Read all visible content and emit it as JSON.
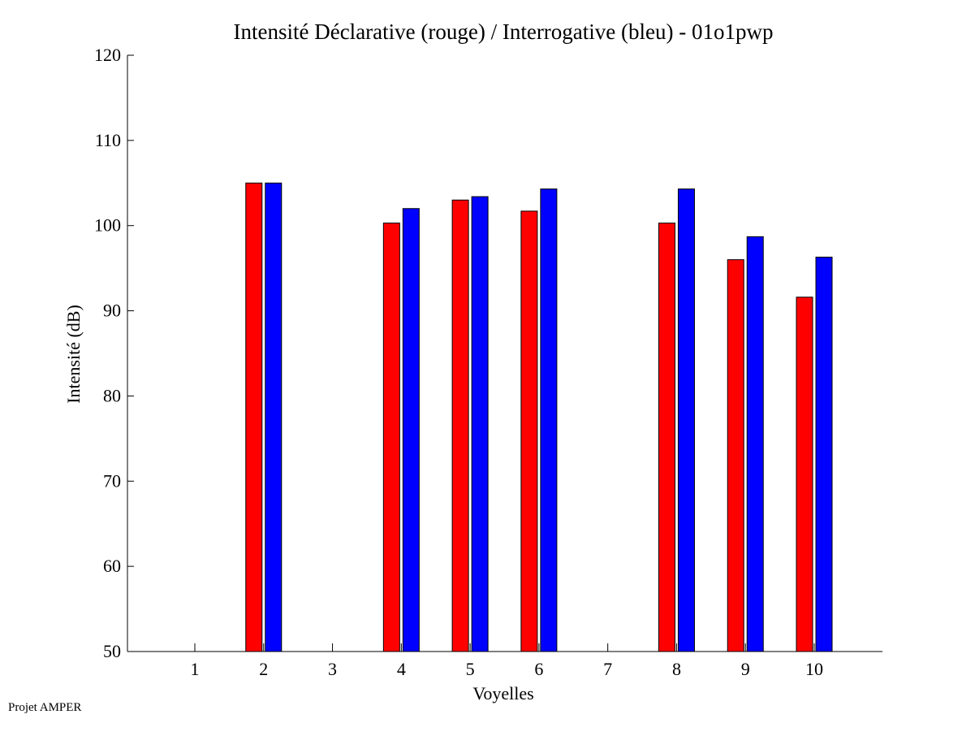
{
  "chart_data": {
    "type": "bar",
    "title": "Intensité Déclarative (rouge) / Interrogative (bleu) - 01o1pwp",
    "xlabel": "Voyelles",
    "ylabel": "Intensité (dB)",
    "categories": [
      "1",
      "2",
      "3",
      "4",
      "5",
      "6",
      "7",
      "8",
      "9",
      "10"
    ],
    "ylim": [
      50,
      120
    ],
    "yticks": [
      50,
      60,
      70,
      80,
      90,
      100,
      110,
      120
    ],
    "grid": false,
    "series": [
      {
        "color": "#ff0000",
        "values": [
          null,
          105.0,
          null,
          100.3,
          103.0,
          101.7,
          null,
          100.3,
          96.0,
          91.6
        ]
      },
      {
        "color": "#0000ff",
        "values": [
          null,
          105.0,
          null,
          102.0,
          103.4,
          104.3,
          null,
          104.3,
          98.7,
          96.3
        ]
      }
    ]
  },
  "footer": {
    "text": "Projet AMPER"
  }
}
